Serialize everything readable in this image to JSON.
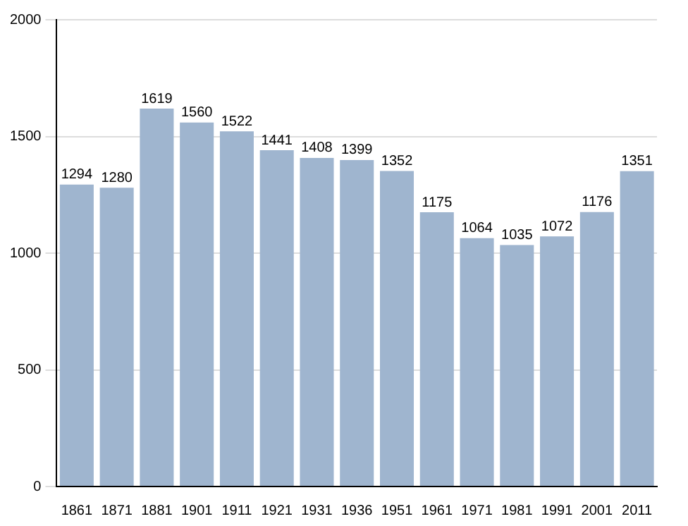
{
  "chart_data": {
    "type": "bar",
    "categories": [
      "1861",
      "1871",
      "1881",
      "1901",
      "1911",
      "1921",
      "1931",
      "1936",
      "1951",
      "1961",
      "1971",
      "1981",
      "1991",
      "2001",
      "2011"
    ],
    "values": [
      1294,
      1280,
      1619,
      1560,
      1522,
      1441,
      1408,
      1399,
      1352,
      1175,
      1064,
      1035,
      1072,
      1176,
      1351
    ],
    "color": "#9fb5cf",
    "ylim": [
      0,
      2000
    ],
    "yticks": [
      0,
      500,
      1000,
      1500,
      2000
    ],
    "grid": "y",
    "data_labels": true
  }
}
